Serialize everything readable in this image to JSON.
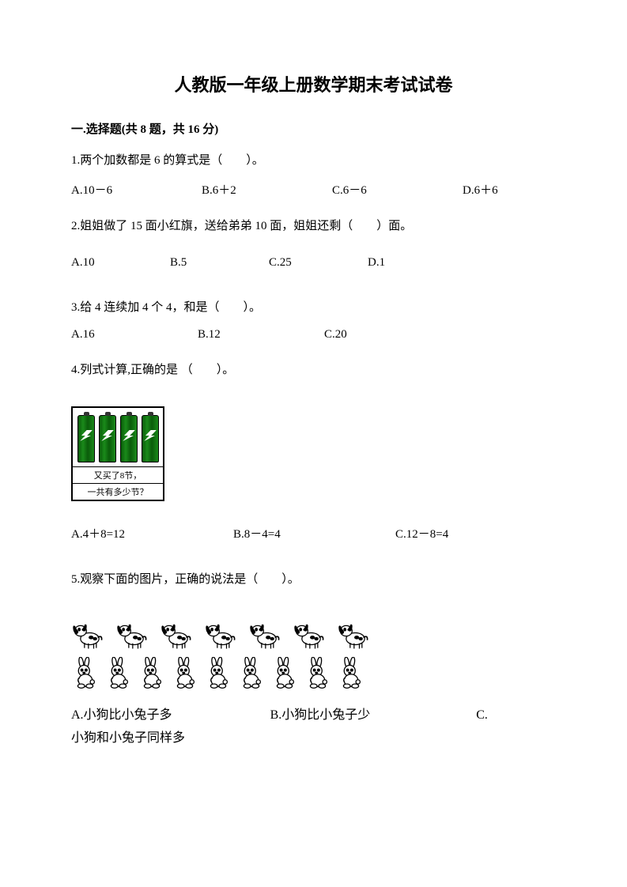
{
  "title": "人教版一年级上册数学期末考试试卷",
  "section1": {
    "header": "一.选择题(共 8 题，共 16 分)",
    "q1": {
      "text": "1.两个加数都是 6 的算式是（　　）。",
      "options": [
        "A.10－6",
        "B.6＋2",
        "C.6－6",
        "D.6＋6"
      ]
    },
    "q2": {
      "text": "2.姐姐做了 15 面小红旗，送给弟弟 10 面，姐姐还剩（　　）面。",
      "options": [
        "A.10",
        "B.5",
        "C.25",
        "D.1"
      ]
    },
    "q3": {
      "text": "3.给 4 连续加 4 个 4，和是（　　）。",
      "options": [
        "A.16",
        "B.12",
        "C.20"
      ]
    },
    "q4": {
      "text": "4.列式计算,正确的是 （　　）。",
      "image": {
        "battery_count": 4,
        "battery_color": "#1a8a1a",
        "caption1": "又买了8节，",
        "caption2": "一共有多少节？"
      },
      "options": [
        "A.4＋8=12",
        "B.8－4=4",
        "C.12－8=4"
      ]
    },
    "q5": {
      "text": "5.观察下面的图片，正确的说法是（　　）。",
      "image": {
        "dog_count": 7,
        "rabbit_count": 9
      },
      "optA": "A.小狗比小兔子多",
      "optB": "B.小狗比小兔子少",
      "optC": "C.",
      "optC_line2": "小狗和小兔子同样多"
    }
  }
}
